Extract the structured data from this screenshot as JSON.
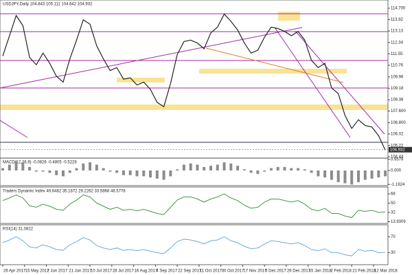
{
  "chart_data": [
    {
      "type": "line",
      "title": "USDJPY,Daily 104.843 105.111 104.642 104.932",
      "color": "#222222",
      "x": [
        0,
        4,
        8,
        12,
        16,
        20,
        24,
        28,
        32,
        36,
        40,
        44,
        48,
        52,
        56,
        60,
        64,
        68,
        72,
        76,
        80,
        84,
        88,
        92,
        96,
        100,
        104,
        108,
        112,
        116,
        120,
        124,
        128,
        132,
        136,
        140,
        144,
        148,
        152,
        156,
        160,
        164,
        168,
        172,
        176,
        180,
        184,
        188,
        192,
        196,
        200,
        204,
        208,
        212,
        216,
        220,
        224,
        228
      ],
      "values": [
        111.4,
        112.8,
        114.2,
        113.5,
        111.3,
        110.8,
        111.6,
        110.9,
        110.0,
        109.6,
        111.2,
        112.5,
        113.9,
        113.6,
        112.1,
        111.2,
        110.4,
        110.6,
        109.8,
        109.9,
        109.4,
        109.6,
        109.1,
        108.2,
        107.9,
        109.5,
        111.5,
        112.4,
        112.5,
        112.3,
        111.9,
        113.0,
        113.4,
        114.3,
        113.8,
        113.2,
        112.3,
        111.6,
        111.8,
        112.7,
        113.4,
        113.3,
        113.1,
        112.8,
        113.1,
        112.5,
        111.1,
        110.6,
        110.9,
        109.2,
        108.8,
        107.3,
        106.4,
        107.0,
        106.6,
        106.5,
        105.9,
        104.9
      ],
      "xlim": [
        -1.64,
        229.6
      ],
      "xticks": [
        {
          "value": 0,
          "label": "26 Apr 2017"
        },
        {
          "value": 13,
          "label": "15 May 2017"
        },
        {
          "value": 26,
          "label": "2 Jun 2017"
        },
        {
          "value": 39,
          "label": "21 Jun 2017"
        },
        {
          "value": 52,
          "label": "10 Jul 2017"
        },
        {
          "value": 65,
          "label": "28 Jul 2017"
        },
        {
          "value": 78,
          "label": "16 Aug 2017"
        },
        {
          "value": 91,
          "label": "4 Sep 2017"
        },
        {
          "value": 104,
          "label": "22 Sep 2017"
        },
        {
          "value": 117,
          "label": "11 Oct 2017"
        },
        {
          "value": 130,
          "label": "30 Oct 2017"
        },
        {
          "value": 143,
          "label": "17 Nov 2017"
        },
        {
          "value": 156,
          "label": "6 Dec 2017"
        },
        {
          "value": 169,
          "label": "26 Dec 2017"
        },
        {
          "value": 182,
          "label": "15 Jan 2018"
        },
        {
          "value": 195,
          "label": "2 Feb 2018"
        },
        {
          "value": 208,
          "label": "21 Feb 2018"
        },
        {
          "value": 221,
          "label": "12 Mar 2018"
        }
      ],
      "ylim": [
        104.35,
        115.27
      ],
      "yticks": [
        {
          "value": 114.7,
          "label": "114.700"
        },
        113.92,
        113.13,
        112.34,
        111.55,
        110.76,
        109.96,
        109.18,
        108.38,
        {
          "value": 107.6,
          "label": "107.600"
        },
        {
          "value": 106.8,
          "label": "106.800"
        },
        106.02,
        105.22,
        104.44
      ],
      "last_price": 104.932
    },
    {
      "type": "bar",
      "title": "MACD(12,26,9) -0.0826 -0.4805 -0.5228",
      "color": "#8c8c8c",
      "values": [
        0.2,
        0.5,
        0.8,
        0.7,
        0.3,
        -0.1,
        -0.1,
        -0.2,
        -0.4,
        -0.5,
        -0.2,
        0.2,
        0.6,
        0.7,
        0.5,
        0.2,
        -0.1,
        -0.2,
        -0.4,
        -0.4,
        -0.5,
        -0.5,
        -0.6,
        -0.7,
        -0.8,
        -0.5,
        0.1,
        0.5,
        0.6,
        0.5,
        0.3,
        0.4,
        0.5,
        0.7,
        0.6,
        0.4,
        0.1,
        -0.2,
        -0.3,
        -0.1,
        0.2,
        0.3,
        0.3,
        0.2,
        0.2,
        0.1,
        -0.2,
        -0.5,
        -0.6,
        -0.8,
        -1.0,
        -1.1,
        -1.2,
        -1.0,
        -0.8,
        -0.7,
        -0.6,
        -0.5
      ],
      "ylim": [
        -1.3,
        1.06
      ],
      "yticks": [
        0.9579,
        {
          "value": 0,
          "label": "0.000"
        },
        -1.1924
      ]
    },
    {
      "type": "line",
      "title": "Traders Dynamic Index 49.6482 35.1872 29.2262 33.5868 48.5778",
      "color": "#2e8b2e",
      "values": [
        55,
        60,
        66,
        60,
        45,
        42,
        48,
        44,
        38,
        36,
        48,
        56,
        66,
        62,
        50,
        44,
        38,
        42,
        36,
        38,
        35,
        38,
        34,
        30,
        28,
        42,
        56,
        62,
        62,
        58,
        52,
        58,
        62,
        68,
        60,
        55,
        46,
        40,
        42,
        52,
        58,
        58,
        55,
        52,
        55,
        48,
        38,
        35,
        40,
        30,
        30,
        25,
        22,
        36,
        34,
        36,
        32,
        33
      ],
      "ylim": [
        10.6,
        81.3
      ],
      "yticks": [
        68,
        50,
        32,
        13.9309
      ]
    },
    {
      "type": "line",
      "title": "RSI(14) 31.0822",
      "color": "#5aa0d8",
      "values": [
        55,
        62,
        70,
        60,
        45,
        42,
        50,
        45,
        38,
        36,
        50,
        58,
        68,
        62,
        48,
        42,
        38,
        42,
        36,
        38,
        35,
        38,
        34,
        30,
        28,
        42,
        58,
        64,
        62,
        58,
        52,
        60,
        62,
        70,
        60,
        55,
        46,
        40,
        42,
        52,
        60,
        58,
        55,
        52,
        55,
        48,
        38,
        35,
        40,
        30,
        30,
        25,
        22,
        38,
        34,
        36,
        30,
        31
      ],
      "ylim": [
        0,
        100
      ],
      "yticks": [
        70,
        30
      ]
    }
  ]
}
